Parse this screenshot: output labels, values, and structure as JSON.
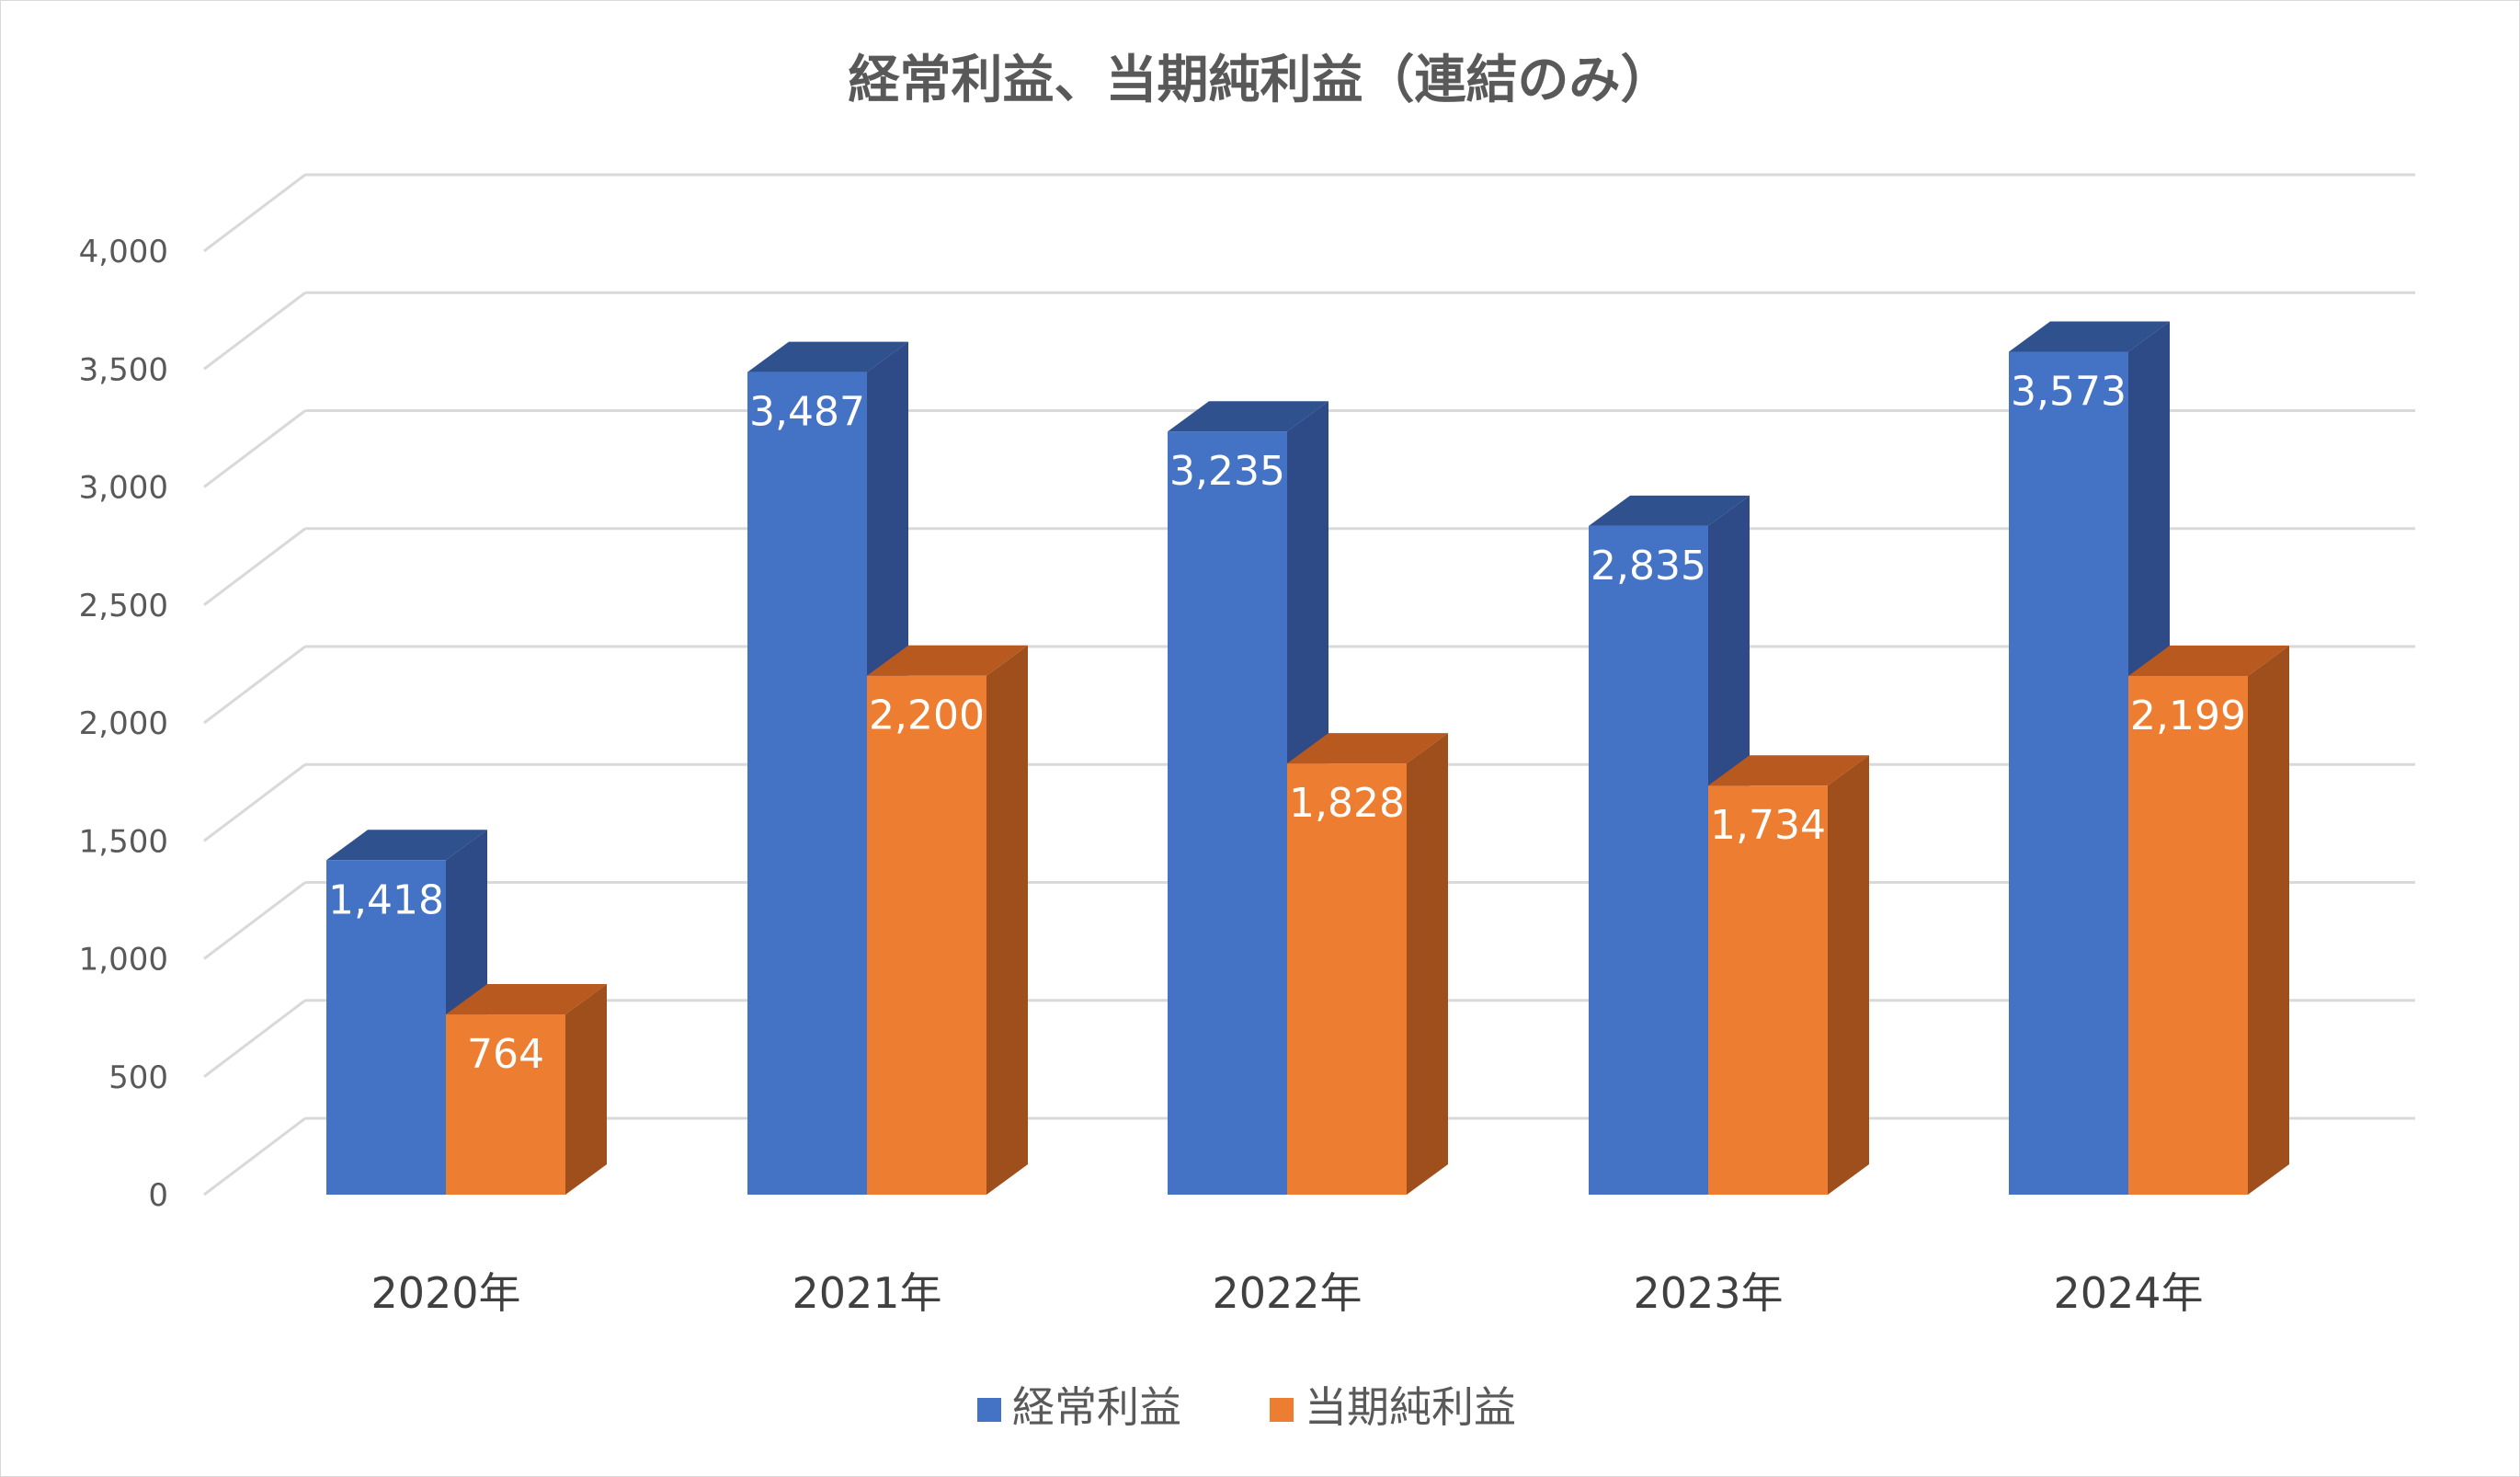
{
  "chart_data": {
    "type": "bar",
    "title": "経常利益、当期純利益（連結のみ）",
    "categories": [
      "2020年",
      "2021年",
      "2022年",
      "2023年",
      "2024年"
    ],
    "series": [
      {
        "name": "経常利益",
        "values": [
          1418,
          3487,
          3235,
          2835,
          3573
        ],
        "labels": [
          "1,418",
          "3,487",
          "3,235",
          "2,835",
          "3,573"
        ],
        "color": "#4472C4",
        "side_color": "#2E4A87",
        "top_color": "#2F528F"
      },
      {
        "name": "当期純利益",
        "values": [
          764,
          2200,
          1828,
          1734,
          2199
        ],
        "labels": [
          "764",
          "2,200",
          "1,828",
          "1,734",
          "2,199"
        ],
        "color": "#ED7D31",
        "side_color": "#9E4F1C",
        "top_color": "#B85A20"
      }
    ],
    "yticks": [
      "0",
      "500",
      "1,000",
      "1,500",
      "2,000",
      "2,500",
      "3,000",
      "3,500",
      "4,000"
    ],
    "ylim": [
      0,
      4000
    ],
    "grid": true,
    "legend_position": "bottom",
    "three_d": true
  }
}
